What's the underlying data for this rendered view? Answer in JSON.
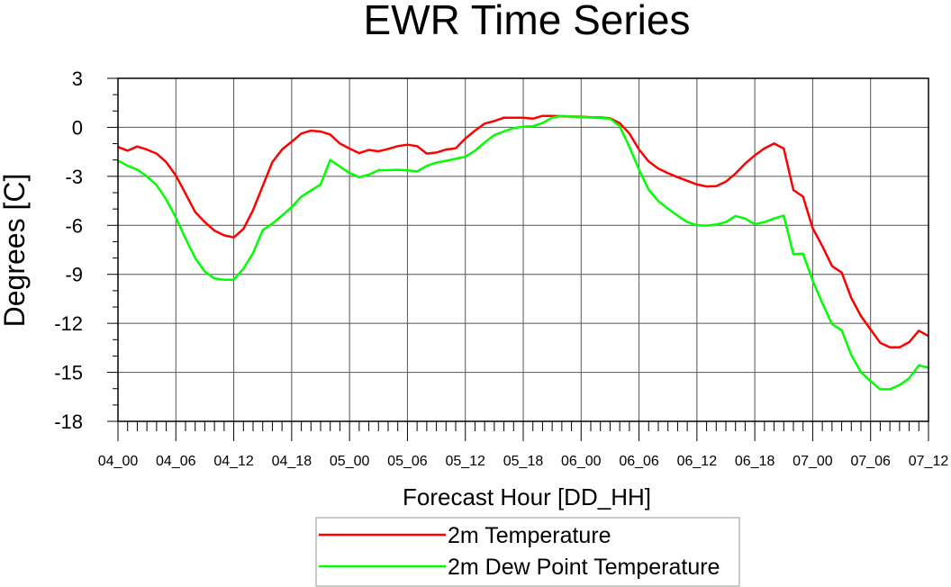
{
  "chart_data": {
    "type": "line",
    "title": "EWR Time Series",
    "xlabel": "Forecast Hour [DD_HH]",
    "ylabel": "Degrees [C]",
    "ylim": [
      -18,
      3
    ],
    "xlim_hours": [
      0,
      84
    ],
    "grid": true,
    "yticks": [
      3,
      0,
      -3,
      -6,
      -9,
      -12,
      -15,
      -18
    ],
    "ytick_labels": [
      "3",
      "0",
      "-3",
      "-6",
      "-9",
      "-12",
      "-15",
      "-18"
    ],
    "xtick_labels": [
      "04_00",
      "04_06",
      "04_12",
      "04_18",
      "05_00",
      "05_06",
      "05_12",
      "05_18",
      "06_00",
      "06_06",
      "06_12",
      "06_18",
      "07_00",
      "07_06",
      "07_12"
    ],
    "xtick_step_hours": 6,
    "legend_placement": "bottom-center",
    "series": [
      {
        "name": "2m Temperature",
        "color": "#ff0000",
        "values": [
          -1.2,
          -1.43,
          -1.17,
          -1.36,
          -1.61,
          -2.13,
          -2.95,
          -4.06,
          -5.18,
          -5.8,
          -6.32,
          -6.61,
          -6.74,
          -6.22,
          -5.07,
          -3.6,
          -2.13,
          -1.36,
          -0.88,
          -0.38,
          -0.2,
          -0.26,
          -0.44,
          -0.99,
          -1.3,
          -1.58,
          -1.38,
          -1.47,
          -1.32,
          -1.15,
          -1.06,
          -1.15,
          -1.61,
          -1.54,
          -1.36,
          -1.29,
          -0.69,
          -0.2,
          0.23,
          0.39,
          0.59,
          0.59,
          0.59,
          0.53,
          0.7,
          0.7,
          0.68,
          0.66,
          0.66,
          0.62,
          0.6,
          0.55,
          0.26,
          -0.38,
          -1.36,
          -2.09,
          -2.53,
          -2.81,
          -3.05,
          -3.27,
          -3.5,
          -3.62,
          -3.6,
          -3.33,
          -2.83,
          -2.22,
          -1.72,
          -1.28,
          -0.99,
          -1.3,
          -3.84,
          -4.24,
          -6.17,
          -7.27,
          -8.5,
          -8.89,
          -10.45,
          -11.55,
          -12.38,
          -13.19,
          -13.47,
          -13.47,
          -13.15,
          -12.45,
          -12.78
        ]
      },
      {
        "name": "2m Dew Point Temperature",
        "color": "#00ff00",
        "values": [
          -2.03,
          -2.36,
          -2.59,
          -3.0,
          -3.54,
          -4.42,
          -5.52,
          -6.81,
          -8.0,
          -8.83,
          -9.25,
          -9.33,
          -9.33,
          -8.65,
          -7.7,
          -6.3,
          -5.89,
          -5.4,
          -4.88,
          -4.24,
          -3.87,
          -3.5,
          -2.0,
          -2.4,
          -2.8,
          -3.05,
          -2.9,
          -2.62,
          -2.62,
          -2.6,
          -2.64,
          -2.7,
          -2.36,
          -2.16,
          -2.05,
          -1.92,
          -1.8,
          -1.43,
          -0.93,
          -0.47,
          -0.25,
          -0.05,
          0.04,
          0.07,
          0.26,
          0.59,
          0.7,
          0.66,
          0.64,
          0.6,
          0.57,
          0.53,
          0.07,
          -1.2,
          -2.59,
          -3.82,
          -4.52,
          -4.98,
          -5.4,
          -5.8,
          -5.99,
          -6.02,
          -5.95,
          -5.8,
          -5.43,
          -5.58,
          -5.93,
          -5.8,
          -5.58,
          -5.4,
          -7.77,
          -7.73,
          -9.38,
          -10.76,
          -12.05,
          -12.42,
          -13.94,
          -14.99,
          -15.54,
          -16.04,
          -16.04,
          -15.78,
          -15.36,
          -14.57,
          -14.71
        ]
      }
    ]
  }
}
